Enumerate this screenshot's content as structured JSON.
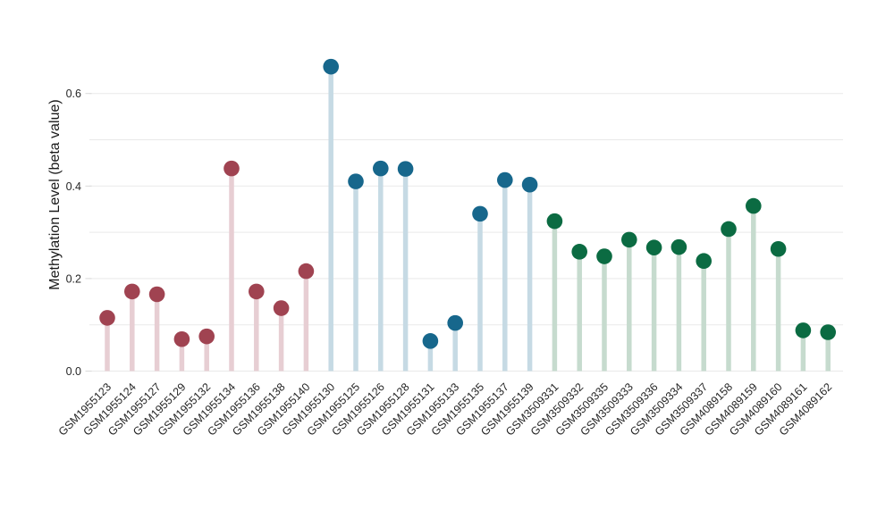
{
  "figure": {
    "background": "#ffffff",
    "gridline_color": "#e9e9e9",
    "tick_mark_color": "#d8d8d8",
    "text_color": "#262626"
  },
  "chart_data": {
    "type": "lollipop",
    "title": "",
    "xlabel": "",
    "ylabel": "Methylation Level (beta value)",
    "ylim": [
      0,
      0.7
    ],
    "yticks": [
      {
        "value": 0.0,
        "label": "0.0"
      },
      {
        "value": 0.2,
        "label": "0.2"
      },
      {
        "value": 0.4,
        "label": "0.4"
      },
      {
        "value": 0.6,
        "label": "0.6"
      }
    ],
    "gridline_values": [
      0.0,
      0.1,
      0.2,
      0.3,
      0.4,
      0.5,
      0.6
    ],
    "grid": true,
    "legend_position": "none",
    "groups": [
      {
        "name": "maroon-group",
        "dot_color": "#a04351",
        "stem_color": "#e7ced3"
      },
      {
        "name": "blue-group",
        "dot_color": "#17678c",
        "stem_color": "#c6dae4"
      },
      {
        "name": "green-group",
        "dot_color": "#0b6b42",
        "stem_color": "#c6dbce"
      }
    ],
    "points": [
      {
        "sample": "GSM1955123",
        "value": 0.115,
        "group": 0
      },
      {
        "sample": "GSM1955124",
        "value": 0.172,
        "group": 0
      },
      {
        "sample": "GSM1955127",
        "value": 0.166,
        "group": 0
      },
      {
        "sample": "GSM1955129",
        "value": 0.069,
        "group": 0
      },
      {
        "sample": "GSM1955132",
        "value": 0.075,
        "group": 0
      },
      {
        "sample": "GSM1955134",
        "value": 0.438,
        "group": 0
      },
      {
        "sample": "GSM1955136",
        "value": 0.172,
        "group": 0
      },
      {
        "sample": "GSM1955138",
        "value": 0.136,
        "group": 0
      },
      {
        "sample": "GSM1955140",
        "value": 0.216,
        "group": 0
      },
      {
        "sample": "GSM1955130",
        "value": 0.658,
        "group": 1
      },
      {
        "sample": "GSM1955125",
        "value": 0.41,
        "group": 1
      },
      {
        "sample": "GSM1955126",
        "value": 0.438,
        "group": 1
      },
      {
        "sample": "GSM1955128",
        "value": 0.437,
        "group": 1
      },
      {
        "sample": "GSM1955131",
        "value": 0.065,
        "group": 1
      },
      {
        "sample": "GSM1955133",
        "value": 0.104,
        "group": 1
      },
      {
        "sample": "GSM1955135",
        "value": 0.34,
        "group": 1
      },
      {
        "sample": "GSM1955137",
        "value": 0.413,
        "group": 1
      },
      {
        "sample": "GSM1955139",
        "value": 0.403,
        "group": 1
      },
      {
        "sample": "GSM3509331",
        "value": 0.324,
        "group": 2
      },
      {
        "sample": "GSM3509332",
        "value": 0.258,
        "group": 2
      },
      {
        "sample": "GSM3509335",
        "value": 0.248,
        "group": 2
      },
      {
        "sample": "GSM3509333",
        "value": 0.284,
        "group": 2
      },
      {
        "sample": "GSM3509336",
        "value": 0.267,
        "group": 2
      },
      {
        "sample": "GSM3509334",
        "value": 0.268,
        "group": 2
      },
      {
        "sample": "GSM3509337",
        "value": 0.238,
        "group": 2
      },
      {
        "sample": "GSM4089158",
        "value": 0.307,
        "group": 2
      },
      {
        "sample": "GSM4089159",
        "value": 0.357,
        "group": 2
      },
      {
        "sample": "GSM4089160",
        "value": 0.264,
        "group": 2
      },
      {
        "sample": "GSM4089161",
        "value": 0.088,
        "group": 2
      },
      {
        "sample": "GSM4089162",
        "value": 0.084,
        "group": 2
      }
    ]
  }
}
